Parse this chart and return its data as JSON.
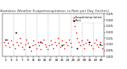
{
  "title": "Milwaukee Weather Evapotranspiration vs Rain per Day (Inches)",
  "legend_et": "Evapotranspiration",
  "legend_rain": "Rain",
  "et_color": "#ff0000",
  "rain_color": "#000000",
  "background_color": "#ffffff",
  "grid_color": "#bbbbbb",
  "ylim": [
    0.0,
    0.35
  ],
  "yticks": [
    0.0,
    0.05,
    0.1,
    0.15,
    0.2,
    0.25,
    0.3,
    0.35
  ],
  "xlim": [
    0,
    36
  ],
  "vline_positions": [
    4,
    8,
    12,
    16,
    20,
    24,
    28,
    32,
    36
  ],
  "et_x": [
    0.5,
    1.0,
    1.5,
    2.0,
    2.5,
    3.0,
    3.5,
    4.5,
    5.0,
    5.5,
    6.0,
    6.5,
    7.0,
    7.5,
    8.0,
    8.5,
    9.0,
    9.5,
    10.0,
    10.5,
    11.0,
    11.5,
    12.0,
    12.5,
    13.0,
    13.5,
    14.0,
    14.5,
    15.0,
    15.5,
    16.0,
    16.5,
    17.0,
    17.5,
    18.0,
    18.5,
    19.0,
    19.5,
    20.0,
    20.5,
    21.0,
    21.5,
    22.0,
    22.5,
    23.0,
    23.5,
    24.0,
    24.5,
    25.0,
    25.5,
    26.0,
    26.5,
    27.0,
    27.5,
    28.0,
    28.5,
    29.0,
    29.5,
    30.0,
    30.5,
    31.0,
    31.5,
    32.0,
    32.5,
    33.0,
    33.5,
    34.0,
    34.5,
    35.0,
    35.5
  ],
  "et_y": [
    0.12,
    0.09,
    0.14,
    0.11,
    0.08,
    0.13,
    0.1,
    0.07,
    0.12,
    0.09,
    0.15,
    0.11,
    0.08,
    0.06,
    0.1,
    0.14,
    0.11,
    0.08,
    0.05,
    0.09,
    0.13,
    0.1,
    0.07,
    0.12,
    0.09,
    0.06,
    0.11,
    0.14,
    0.1,
    0.08,
    0.06,
    0.09,
    0.13,
    0.1,
    0.07,
    0.12,
    0.09,
    0.15,
    0.11,
    0.08,
    0.13,
    0.1,
    0.07,
    0.12,
    0.09,
    0.14,
    0.11,
    0.08,
    0.3,
    0.25,
    0.2,
    0.15,
    0.12,
    0.09,
    0.13,
    0.1,
    0.07,
    0.11,
    0.14,
    0.1,
    0.12,
    0.09,
    0.07,
    0.11,
    0.14,
    0.1,
    0.08,
    0.12,
    0.09,
    0.07
  ],
  "rain_x": [
    1.2,
    4.8,
    9.5,
    13.5,
    21.0,
    26.5,
    30.5,
    34.5
  ],
  "rain_y": [
    0.14,
    0.2,
    0.08,
    0.12,
    0.09,
    0.07,
    0.12,
    0.1
  ],
  "xtick_positions": [
    1,
    3,
    5,
    7,
    9,
    11,
    13,
    15,
    17,
    19,
    21,
    23,
    25,
    27,
    29,
    31,
    33,
    35
  ],
  "xtick_labels": [
    "1",
    "3",
    "5",
    "7",
    "9",
    "11",
    "13",
    "15",
    "17",
    "19",
    "21",
    "23",
    "25",
    "27",
    "29",
    "31",
    "33",
    "35"
  ],
  "figsize": [
    1.6,
    0.87
  ],
  "dpi": 100
}
